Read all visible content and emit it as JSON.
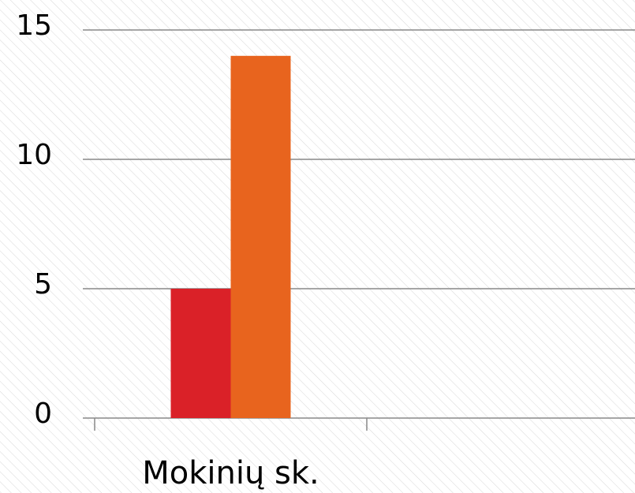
{
  "chart_data": {
    "type": "bar",
    "categories": [
      "Mokinių sk."
    ],
    "series": [
      {
        "color": "#da2128",
        "values": [
          5
        ]
      },
      {
        "color": "#e8641e",
        "values": [
          14
        ]
      }
    ],
    "ylim": [
      0,
      15
    ],
    "yticks": [
      0,
      5,
      10,
      15
    ],
    "grid": true
  }
}
